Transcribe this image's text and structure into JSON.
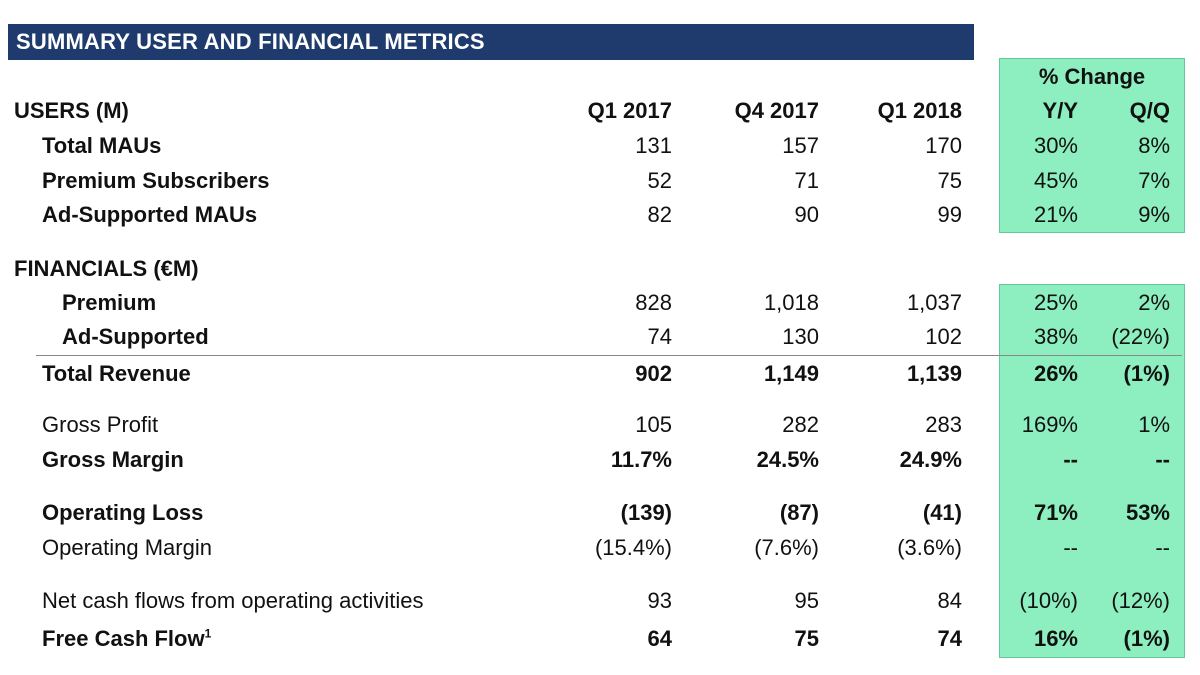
{
  "title": "SUMMARY USER AND FINANCIAL METRICS",
  "pct_change_label": "% Change",
  "headers": {
    "users": "USERS (M)",
    "q1_2017": "Q1 2017",
    "q4_2017": "Q4 2017",
    "q1_2018": "Q1 2018",
    "yy": "Y/Y",
    "qq": "Q/Q"
  },
  "financials_label": "FINANCIALS (€M)",
  "rows": [
    {
      "label": "Total MAUs",
      "v": [
        "131",
        "157",
        "170"
      ],
      "yy": "30%",
      "qq": "8%"
    },
    {
      "label": "Premium Subscribers",
      "v": [
        "52",
        "71",
        "75"
      ],
      "yy": "45%",
      "qq": "7%"
    },
    {
      "label": "Ad-Supported MAUs",
      "v": [
        "82",
        "90",
        "99"
      ],
      "yy": "21%",
      "qq": "9%"
    },
    {
      "label": "Premium",
      "v": [
        "828",
        "1,018",
        "1,037"
      ],
      "yy": "25%",
      "qq": "2%"
    },
    {
      "label": "Ad-Supported",
      "v": [
        "74",
        "130",
        "102"
      ],
      "yy": "38%",
      "qq": "(22%)"
    },
    {
      "label": "Total Revenue",
      "v": [
        "902",
        "1,149",
        "1,139"
      ],
      "yy": "26%",
      "qq": "(1%)"
    },
    {
      "label": "Gross Profit",
      "v": [
        "105",
        "282",
        "283"
      ],
      "yy": "169%",
      "qq": "1%"
    },
    {
      "label": "Gross Margin",
      "v": [
        "11.7%",
        "24.5%",
        "24.9%"
      ],
      "yy": "--",
      "qq": "--"
    },
    {
      "label": "Operating Loss",
      "v": [
        "(139)",
        "(87)",
        "(41)"
      ],
      "yy": "71%",
      "qq": "53%"
    },
    {
      "label": "Operating Margin",
      "v": [
        "(15.4%)",
        "(7.6%)",
        "(3.6%)"
      ],
      "yy": "--",
      "qq": "--"
    },
    {
      "label": "Net cash flows from operating activities",
      "v": [
        "93",
        "95",
        "84"
      ],
      "yy": "(10%)",
      "qq": "(12%)"
    },
    {
      "label": "Free Cash Flow",
      "footnote": "1",
      "v": [
        "64",
        "75",
        "74"
      ],
      "yy": "16%",
      "qq": "(1%)"
    }
  ]
}
